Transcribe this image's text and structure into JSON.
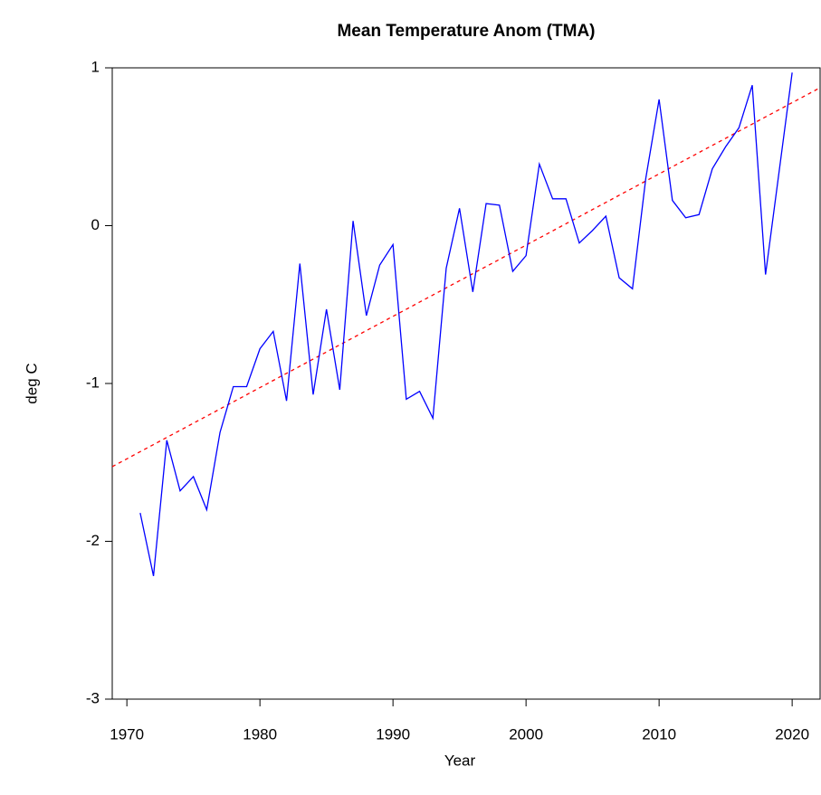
{
  "chart_data": {
    "type": "line",
    "title": "Mean Temperature Anom (TMA)",
    "x_label": "Year",
    "y_label": "deg C",
    "x": [
      1971,
      1972,
      1973,
      1974,
      1975,
      1976,
      1977,
      1978,
      1979,
      1980,
      1981,
      1982,
      1983,
      1984,
      1985,
      1986,
      1987,
      1988,
      1989,
      1990,
      1991,
      1992,
      1993,
      1994,
      1995,
      1996,
      1997,
      1998,
      1999,
      2000,
      2001,
      2002,
      2003,
      2004,
      2005,
      2006,
      2007,
      2008,
      2009,
      2010,
      2011,
      2012,
      2013,
      2014,
      2015,
      2016,
      2017,
      2018,
      2019,
      2020
    ],
    "series": [
      {
        "color": "#0000ff",
        "values": [
          -1.82,
          -2.22,
          -1.36,
          -1.68,
          -1.59,
          -1.8,
          -1.31,
          -1.02,
          -1.02,
          -0.78,
          -0.67,
          -1.11,
          -0.24,
          -1.07,
          -0.53,
          -1.04,
          0.03,
          -0.57,
          -0.25,
          -0.12,
          -1.1,
          -1.05,
          -1.22,
          -0.27,
          0.11,
          -0.42,
          0.14,
          0.13,
          -0.29,
          -0.19,
          0.39,
          0.17,
          0.17,
          -0.11,
          -0.03,
          0.06,
          -0.33,
          -0.4,
          0.3,
          0.8,
          0.16,
          0.05,
          0.07,
          0.36,
          0.5,
          0.62,
          0.89,
          -0.31,
          0.33,
          0.97
        ]
      }
    ],
    "trend": {
      "color": "#ff0000",
      "x": [
        1968.9,
        2022.1
      ],
      "values": [
        -1.527,
        0.874
      ]
    },
    "xlim": [
      1968.9,
      2022.1
    ],
    "ylim": [
      -3,
      1
    ],
    "xticks": [
      1970,
      1980,
      1990,
      2000,
      2010,
      2020
    ],
    "yticks": [
      -3,
      -2,
      -1,
      0,
      1
    ]
  }
}
